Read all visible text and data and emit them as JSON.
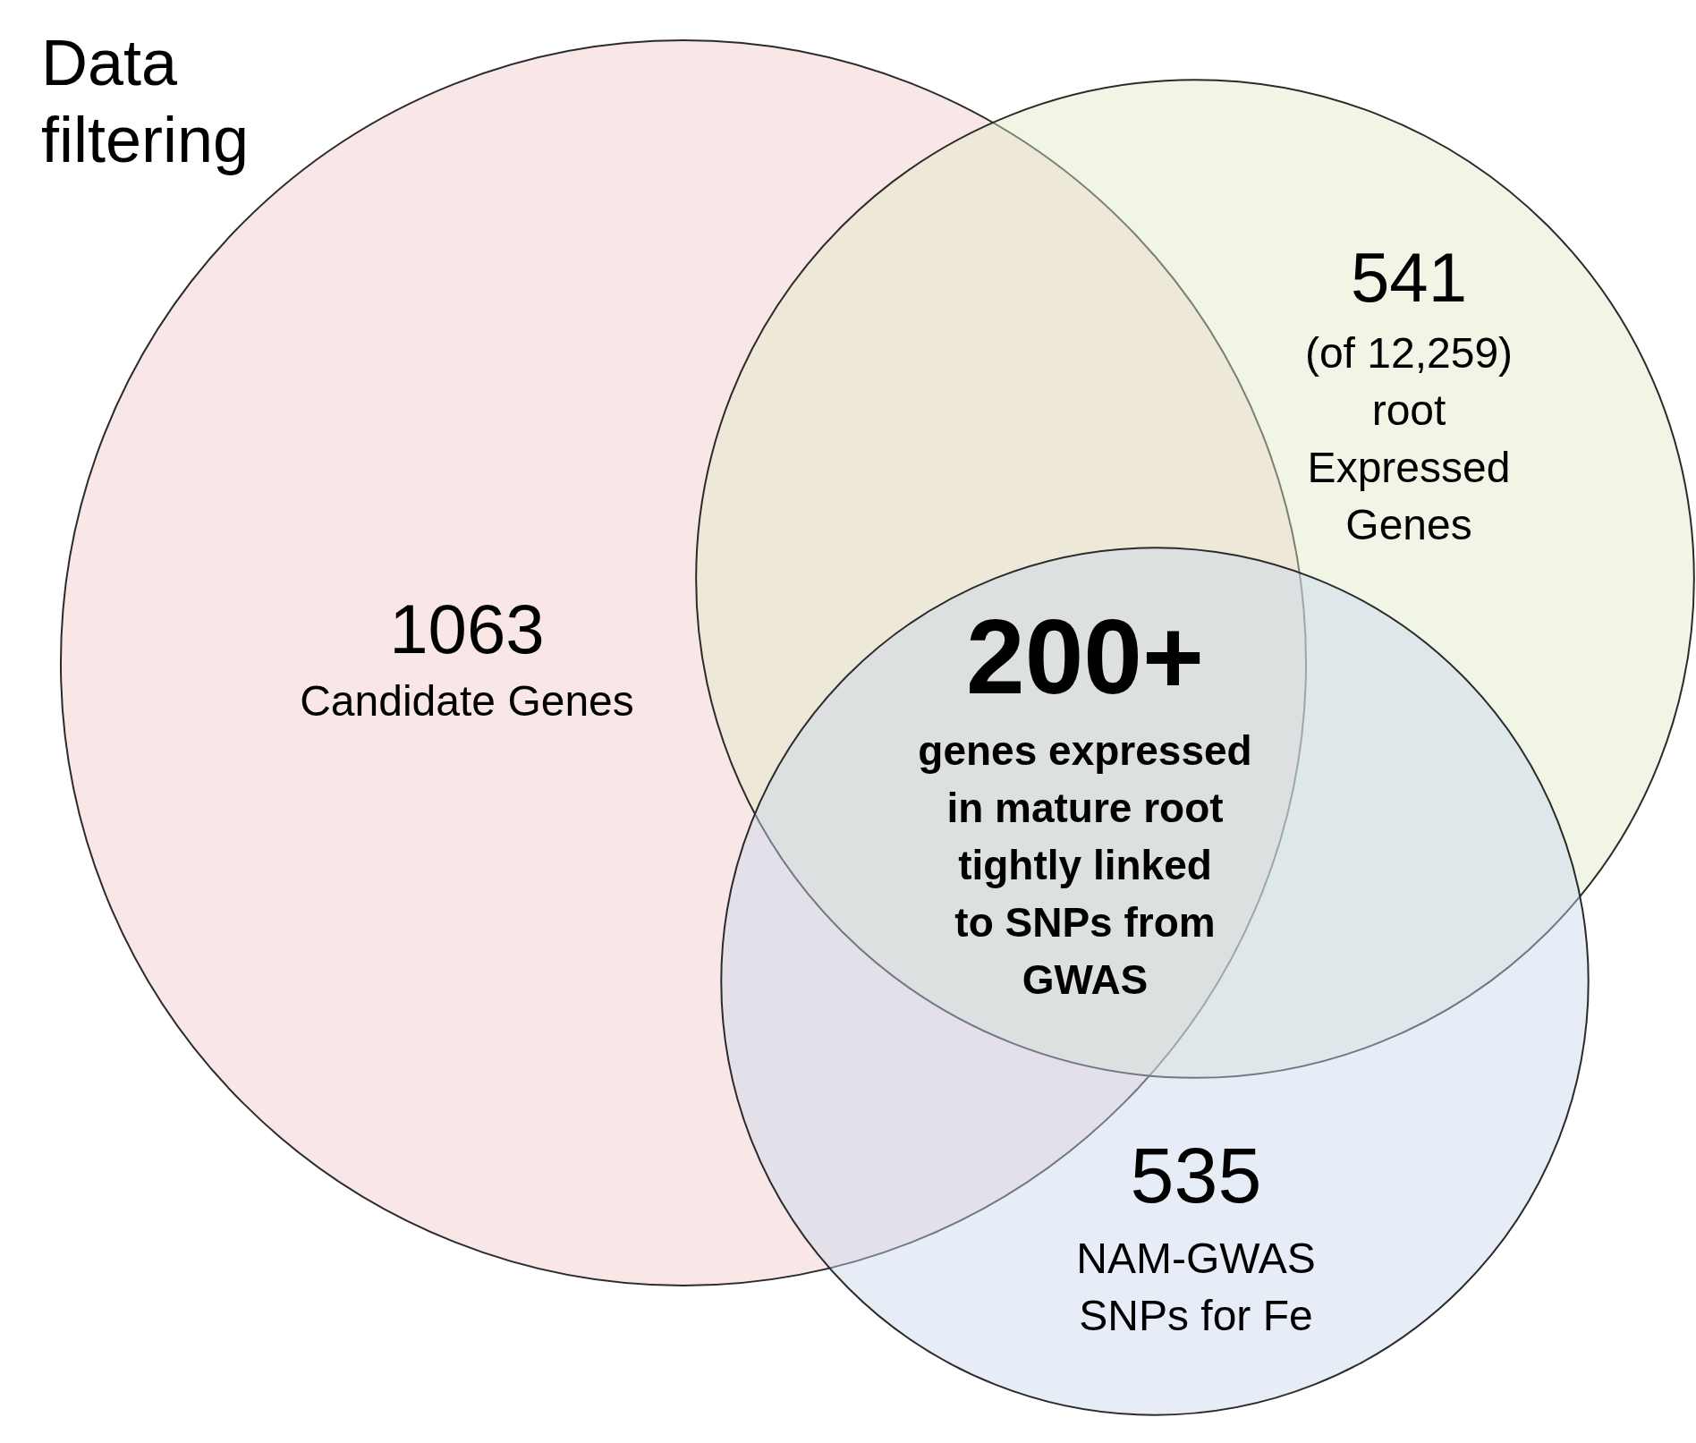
{
  "chart_data": {
    "type": "other",
    "title": "Data filtering",
    "categories": [
      "Candidate Genes",
      "(of 12,259) root Expressed Genes",
      "NAM-GWAS SNPs for Fe"
    ],
    "values": [
      1063,
      541,
      535
    ],
    "data_labels": true,
    "colors": [
      "#f2c9cd",
      "#dde8c6",
      "#c7d7ee"
    ],
    "annotations": [
      "200+",
      "genes expressed in mature root tightly linked to SNPs from GWAS"
    ]
  }
}
